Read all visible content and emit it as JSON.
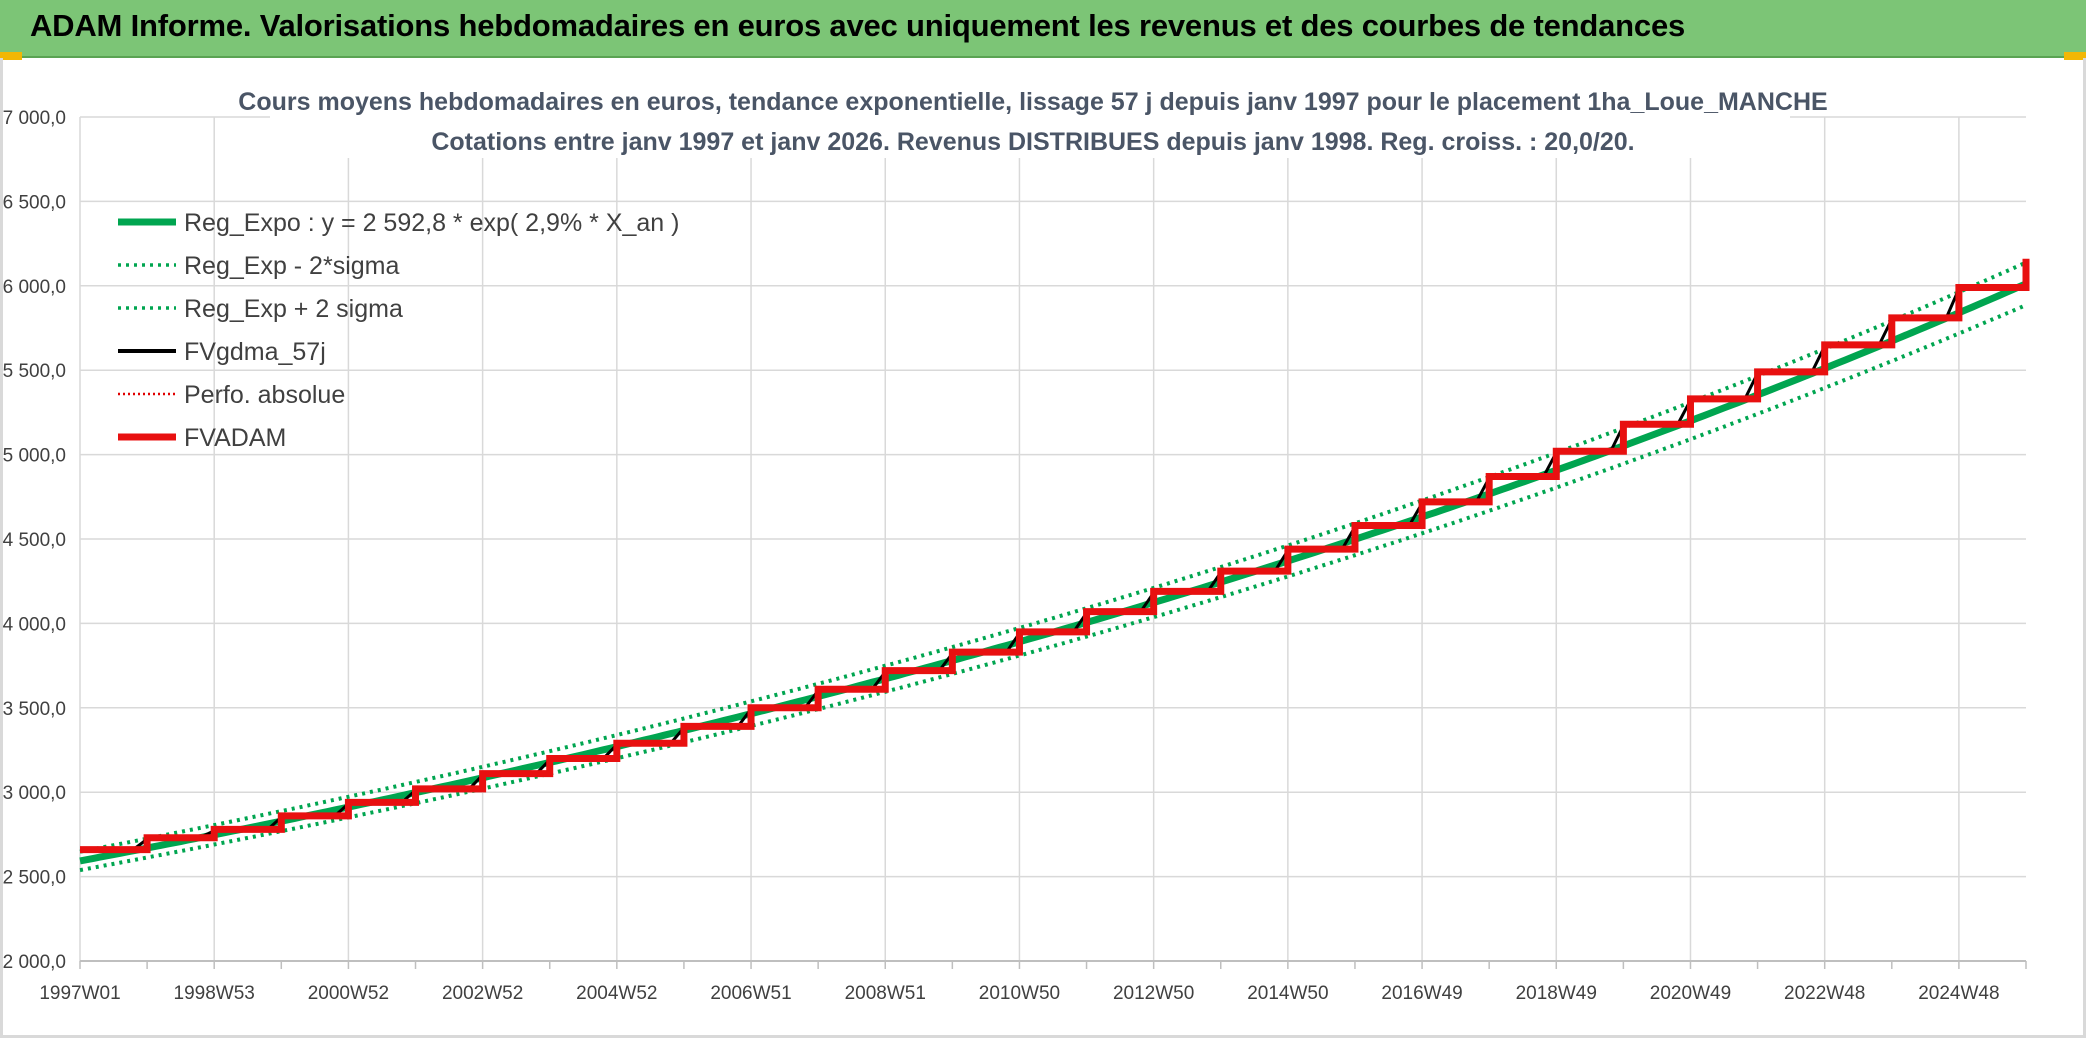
{
  "header": {
    "title": "ADAM Informe. Valorisations hebdomadaires en euros avec uniquement les revenus et des courbes de tendances"
  },
  "colors": {
    "banner": "#7cc576",
    "reg_expo": "#00a550",
    "fvgdma": "#000000",
    "perfo": "#e00000",
    "fvadam": "#e81010",
    "grid": "#d9d9d9"
  },
  "chart_data": {
    "type": "line",
    "title_line1": "Cours moyens hebdomadaires en euros, tendance exponentielle, lissage 57 j depuis janv 1997 pour le placement 1ha_Loue_MANCHE",
    "title_line2": "Cotations entre janv 1997 et janv 2026. Revenus DISTRIBUES depuis janv 1998. Reg. croiss. : 20,0/20.",
    "x_tick_labels": [
      "1997W01",
      "1998W53",
      "2000W52",
      "2002W52",
      "2004W52",
      "2006W51",
      "2008W51",
      "2010W50",
      "2012W50",
      "2014W50",
      "2016W49",
      "2018W49",
      "2020W49",
      "2022W48",
      "2024W48"
    ],
    "x_range": [
      "1997W01",
      "2026W01"
    ],
    "y_tick_labels": [
      "2 000,0",
      "2 500,0",
      "3 000,0",
      "3 500,0",
      "4 000,0",
      "4 500,0",
      "5 000,0",
      "5 500,0",
      "6 000,0",
      "6 500,0",
      "7 000,0"
    ],
    "ylim": [
      2000,
      7000
    ],
    "grid": true,
    "legend_position": "top-left",
    "regression": {
      "a": 2592.8,
      "rate": 0.029,
      "sigma_band_ratio": 0.021
    },
    "legend": [
      {
        "label": "Reg_Expo : y = 2 592,8 * exp( 2,9% *  X_an )",
        "color": "#00a550",
        "style": "solid-thick"
      },
      {
        "label": "Reg_Exp - 2*sigma",
        "color": "#00a550",
        "style": "dotted"
      },
      {
        "label": "Reg_Exp + 2 sigma",
        "color": "#00a550",
        "style": "dotted"
      },
      {
        "label": "FVgdma_57j",
        "color": "#000000",
        "style": "solid"
      },
      {
        "label": "Perfo. absolue",
        "color": "#e00000",
        "style": "dotted"
      },
      {
        "label": "FVADAM",
        "color": "#e81010",
        "style": "solid-thick"
      }
    ],
    "fvadam_steps": {
      "years": [
        1997,
        1998,
        1999,
        2000,
        2001,
        2002,
        2003,
        2004,
        2005,
        2006,
        2007,
        2008,
        2009,
        2010,
        2011,
        2012,
        2013,
        2014,
        2015,
        2016,
        2017,
        2018,
        2019,
        2020,
        2021,
        2022,
        2023,
        2024,
        2025
      ],
      "values": [
        2660,
        2730,
        2780,
        2860,
        2940,
        3020,
        3110,
        3200,
        3290,
        3390,
        3500,
        3610,
        3720,
        3830,
        3950,
        4070,
        4190,
        4310,
        4440,
        4580,
        4720,
        4870,
        5020,
        5180,
        5330,
        5490,
        5650,
        5810,
        5990
      ],
      "last_value": 6160
    }
  }
}
